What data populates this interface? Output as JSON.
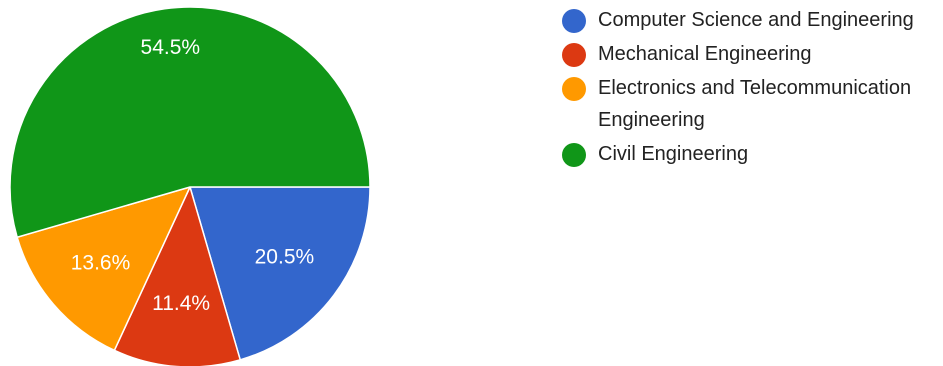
{
  "chart_data": {
    "type": "pie",
    "slices": [
      {
        "label": "Computer Science and Engineering",
        "value": 20.5,
        "value_label": "20.5%",
        "color": "#3366cc"
      },
      {
        "label": "Mechanical Engineering",
        "value": 11.4,
        "value_label": "11.4%",
        "color": "#dc3912"
      },
      {
        "label": "Electronics and Telecommunication Engineering",
        "value": 13.6,
        "value_label": "13.6%",
        "color": "#ff9900"
      },
      {
        "label": "Civil Engineering",
        "value": 54.5,
        "value_label": "54.5%",
        "color": "#109618"
      }
    ],
    "legend_position": "right"
  }
}
